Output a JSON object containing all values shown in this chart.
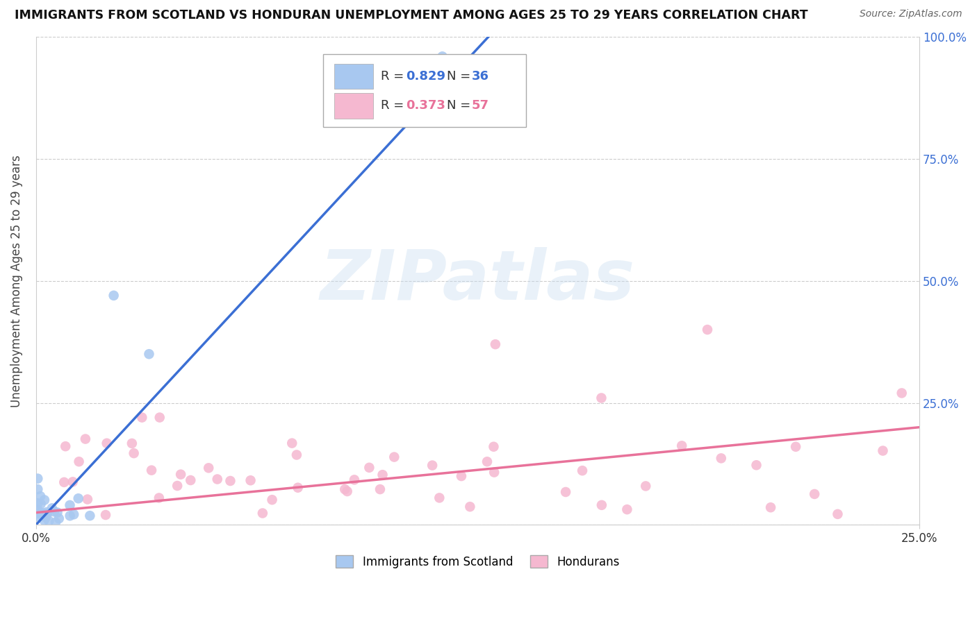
{
  "title": "IMMIGRANTS FROM SCOTLAND VS HONDURAN UNEMPLOYMENT AMONG AGES 25 TO 29 YEARS CORRELATION CHART",
  "source": "Source: ZipAtlas.com",
  "ylabel": "Unemployment Among Ages 25 to 29 years",
  "xlim": [
    0.0,
    0.25
  ],
  "ylim": [
    0.0,
    1.0
  ],
  "xtick_positions": [
    0.0,
    0.25
  ],
  "xtick_labels": [
    "0.0%",
    "25.0%"
  ],
  "ytick_positions": [
    0.0,
    0.25,
    0.5,
    0.75,
    1.0
  ],
  "left_ytick_labels": [
    "",
    "",
    "",
    "",
    ""
  ],
  "right_ytick_labels": [
    "",
    "25.0%",
    "50.0%",
    "75.0%",
    "100.0%"
  ],
  "R_blue": 0.829,
  "N_blue": 36,
  "R_pink": 0.373,
  "N_pink": 57,
  "blue_color": "#a8c8f0",
  "blue_line_color": "#3b6fd4",
  "pink_color": "#f5b8d0",
  "pink_line_color": "#e8729a",
  "legend_label_blue": "Immigrants from Scotland",
  "legend_label_pink": "Hondurans",
  "watermark_text": "ZIPatlas",
  "grid_color": "#cccccc",
  "background_color": "#ffffff",
  "tick_color": "#3b6fd4",
  "blue_trend_x": [
    0.0,
    0.128
  ],
  "blue_trend_y": [
    0.0,
    1.0
  ],
  "pink_trend_x": [
    0.0,
    0.25
  ],
  "pink_trend_y": [
    0.025,
    0.2
  ]
}
